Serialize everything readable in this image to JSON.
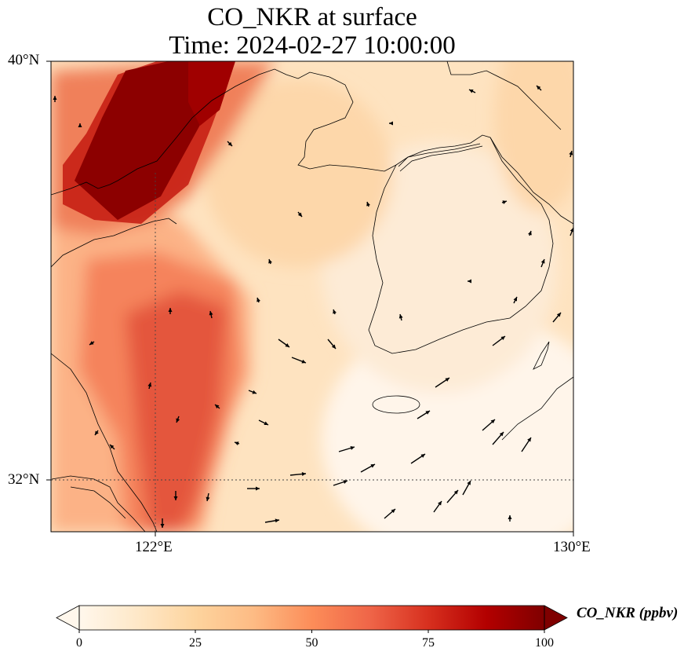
{
  "title": {
    "line1": "CO_NKR at surface",
    "line2": "Time: 2024-02-27 10:00:00"
  },
  "axes": {
    "lat_ticks": [
      "40°N",
      "32°N"
    ],
    "lon_ticks": [
      "122°E",
      "130°E"
    ],
    "extent": {
      "lon_min": 120,
      "lon_max": 130,
      "lat_min": 31,
      "lat_max": 40
    }
  },
  "colorbar": {
    "label": "CO_NKR (ppbv)",
    "ticks": [
      "0",
      "25",
      "50",
      "75",
      "100"
    ],
    "range": [
      0,
      100
    ],
    "extend": "both",
    "colormap": "OrRd",
    "colors": [
      "#fff7ec",
      "#fee8c8",
      "#fdd49e",
      "#fdbb84",
      "#fc8d59",
      "#ef6548",
      "#d7301f",
      "#b30000",
      "#7f0000"
    ]
  }
}
